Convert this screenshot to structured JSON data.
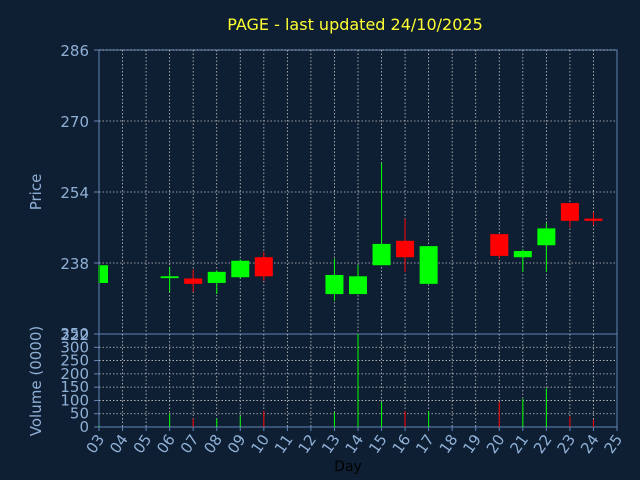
{
  "chart_data": [
    {
      "type": "candlestick",
      "title": "PAGE - last updated 24/10/2025",
      "ylabel": "Price",
      "ylim": [
        222,
        286
      ],
      "yticks": [
        222,
        238,
        254,
        270,
        286
      ],
      "grid": true,
      "candles": [
        {
          "day": "03",
          "open": 233.5,
          "close": 237.5,
          "high": 237.5,
          "low": 233.5
        },
        {
          "day": "06",
          "open": 234.6,
          "close": 235.0,
          "high": 237.2,
          "low": 231.5
        },
        {
          "day": "07",
          "open": 234.5,
          "close": 233.3,
          "high": 236.5,
          "low": 231.5
        },
        {
          "day": "08",
          "open": 233.5,
          "close": 236.0,
          "high": 236.3,
          "low": 231.0
        },
        {
          "day": "09",
          "open": 234.8,
          "close": 238.5,
          "high": 238.8,
          "low": 234.5
        },
        {
          "day": "10",
          "open": 239.3,
          "close": 235.0,
          "high": 240.5,
          "low": 234.0
        },
        {
          "day": "13",
          "open": 231.0,
          "close": 235.3,
          "high": 239.0,
          "low": 229.5
        },
        {
          "day": "14",
          "open": 231.0,
          "close": 235.0,
          "high": 237.5,
          "low": 231.0
        },
        {
          "day": "15",
          "open": 237.5,
          "close": 242.3,
          "high": 260.5,
          "low": 237.5
        },
        {
          "day": "16",
          "open": 243.0,
          "close": 239.3,
          "high": 248.0,
          "low": 236.0
        },
        {
          "day": "17",
          "open": 233.3,
          "close": 241.8,
          "high": 241.8,
          "low": 233.3
        },
        {
          "day": "20",
          "open": 244.5,
          "close": 239.6,
          "high": 244.5,
          "low": 239.0
        },
        {
          "day": "21",
          "open": 239.3,
          "close": 240.7,
          "high": 241.0,
          "low": 236.0
        },
        {
          "day": "22",
          "open": 242.0,
          "close": 245.8,
          "high": 247.0,
          "low": 236.0
        },
        {
          "day": "23",
          "open": 251.5,
          "close": 247.5,
          "high": 251.5,
          "low": 246.0
        },
        {
          "day": "24",
          "open": 248.0,
          "close": 247.5,
          "high": 249.5,
          "low": 246.5
        }
      ]
    },
    {
      "type": "bar",
      "ylabel": "Volume (0000)",
      "ylim": [
        0,
        350
      ],
      "yticks": [
        0,
        50,
        100,
        150,
        200,
        250,
        300,
        350
      ],
      "volume": [
        {
          "day": "03",
          "value": 4,
          "direction": "up"
        },
        {
          "day": "06",
          "value": 50,
          "direction": "up"
        },
        {
          "day": "07",
          "value": 32,
          "direction": "down"
        },
        {
          "day": "08",
          "value": 32,
          "direction": "up"
        },
        {
          "day": "09",
          "value": 42,
          "direction": "up"
        },
        {
          "day": "10",
          "value": 60,
          "direction": "down"
        },
        {
          "day": "13",
          "value": 55,
          "direction": "up"
        },
        {
          "day": "14",
          "value": 350,
          "direction": "up"
        },
        {
          "day": "15",
          "value": 95,
          "direction": "up"
        },
        {
          "day": "16",
          "value": 60,
          "direction": "down"
        },
        {
          "day": "17",
          "value": 60,
          "direction": "up"
        },
        {
          "day": "20",
          "value": 95,
          "direction": "down"
        },
        {
          "day": "21",
          "value": 105,
          "direction": "up"
        },
        {
          "day": "22",
          "value": 145,
          "direction": "up"
        },
        {
          "day": "23",
          "value": 40,
          "direction": "down"
        },
        {
          "day": "24",
          "value": 28,
          "direction": "down"
        }
      ]
    }
  ],
  "x_axis": {
    "label": "Day",
    "ticks": [
      "03",
      "04",
      "05",
      "06",
      "07",
      "08",
      "09",
      "10",
      "11",
      "12",
      "13",
      "14",
      "15",
      "16",
      "17",
      "18",
      "19",
      "20",
      "21",
      "22",
      "23",
      "24",
      "25"
    ]
  },
  "colors": {
    "background": "#0f1f33",
    "up": "#00ff00",
    "down": "#ff0000",
    "text": "#8fb0d6",
    "title": "#ffff33",
    "grid": "#c8c8c8",
    "frame": "#5f85b5"
  }
}
